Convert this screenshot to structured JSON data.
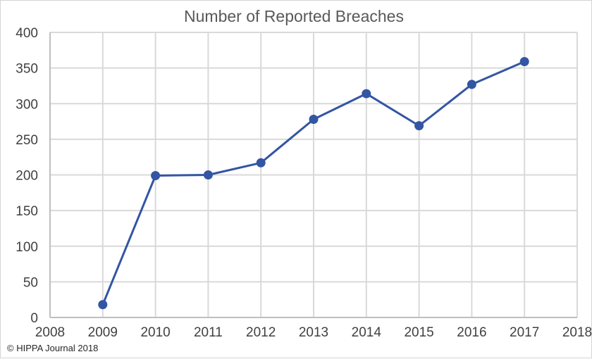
{
  "chart_data": {
    "type": "line",
    "title": "Number of Reported Breaches",
    "xlabel": "",
    "ylabel": "",
    "xlim": [
      2008,
      2018
    ],
    "ylim": [
      0,
      400
    ],
    "x_ticks": [
      2008,
      2009,
      2010,
      2011,
      2012,
      2013,
      2014,
      2015,
      2016,
      2017,
      2018
    ],
    "y_ticks": [
      0,
      50,
      100,
      150,
      200,
      250,
      300,
      350,
      400
    ],
    "grid": true,
    "legend": "none",
    "series": [
      {
        "color": "#3355a3",
        "x": [
          2009,
          2010,
          2011,
          2012,
          2013,
          2014,
          2015,
          2016,
          2017
        ],
        "y": [
          18,
          199,
          200,
          217,
          278,
          314,
          269,
          327,
          359
        ]
      }
    ]
  },
  "footer": {
    "copyright": "© HIPPA Journal 2018"
  }
}
